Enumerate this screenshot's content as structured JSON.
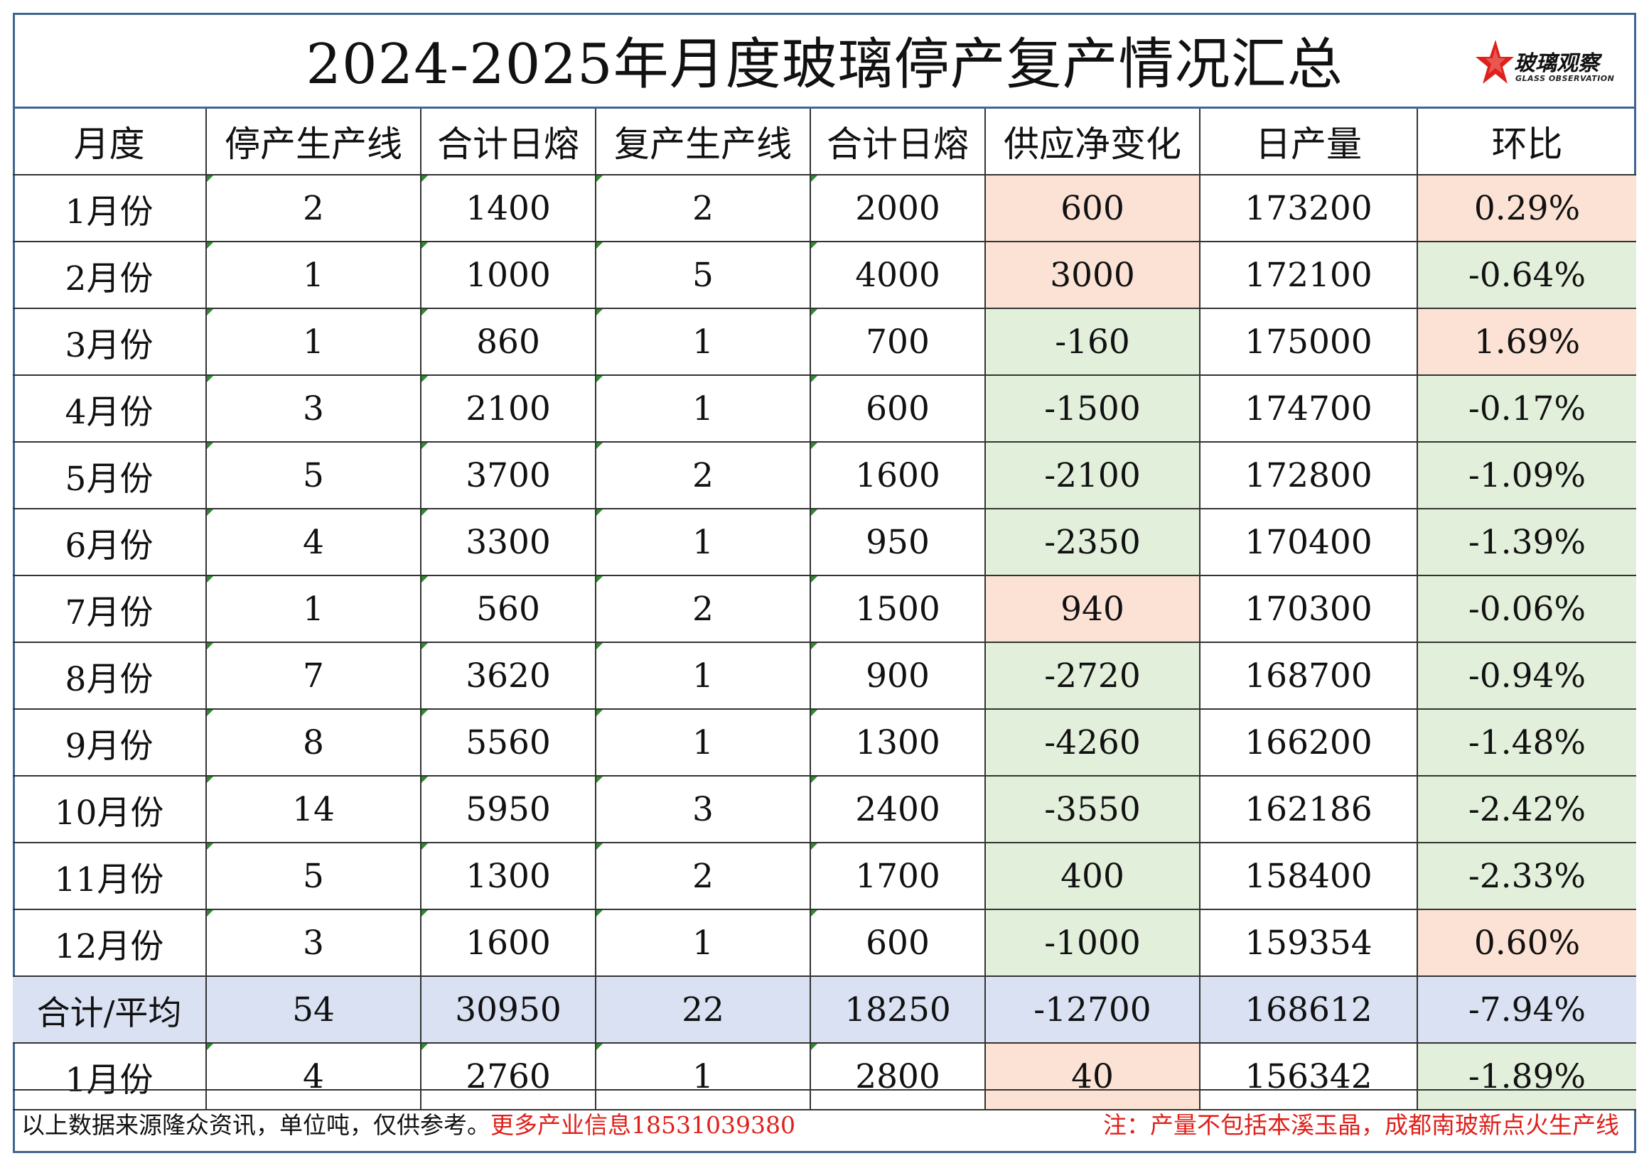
{
  "title": "2024-2025年月度玻璃停产复产情况汇总",
  "logo": {
    "name_cn": "玻璃观察",
    "name_en": "GLASS OBSERVATION",
    "icon": "red-star-icon"
  },
  "headers": [
    "月度",
    "停产生产线",
    "合计日熔",
    "复产生产线",
    "合计日熔",
    "供应净变化",
    "日产量",
    "环比"
  ],
  "rows": [
    {
      "month": "1月份",
      "stop_lines": "2",
      "stop_melt": "1400",
      "resume_lines": "2",
      "resume_melt": "2000",
      "net": "600",
      "daily": "173200",
      "mom": "0.29%",
      "net_tone": "pos",
      "mom_tone": "pos"
    },
    {
      "month": "2月份",
      "stop_lines": "1",
      "stop_melt": "1000",
      "resume_lines": "5",
      "resume_melt": "4000",
      "net": "3000",
      "daily": "172100",
      "mom": "-0.64%",
      "net_tone": "pos",
      "mom_tone": "neg"
    },
    {
      "month": "3月份",
      "stop_lines": "1",
      "stop_melt": "860",
      "resume_lines": "1",
      "resume_melt": "700",
      "net": "-160",
      "daily": "175000",
      "mom": "1.69%",
      "net_tone": "neg",
      "mom_tone": "pos"
    },
    {
      "month": "4月份",
      "stop_lines": "3",
      "stop_melt": "2100",
      "resume_lines": "1",
      "resume_melt": "600",
      "net": "-1500",
      "daily": "174700",
      "mom": "-0.17%",
      "net_tone": "neg",
      "mom_tone": "neg"
    },
    {
      "month": "5月份",
      "stop_lines": "5",
      "stop_melt": "3700",
      "resume_lines": "2",
      "resume_melt": "1600",
      "net": "-2100",
      "daily": "172800",
      "mom": "-1.09%",
      "net_tone": "neg",
      "mom_tone": "neg"
    },
    {
      "month": "6月份",
      "stop_lines": "4",
      "stop_melt": "3300",
      "resume_lines": "1",
      "resume_melt": "950",
      "net": "-2350",
      "daily": "170400",
      "mom": "-1.39%",
      "net_tone": "neg",
      "mom_tone": "neg"
    },
    {
      "month": "7月份",
      "stop_lines": "1",
      "stop_melt": "560",
      "resume_lines": "2",
      "resume_melt": "1500",
      "net": "940",
      "daily": "170300",
      "mom": "-0.06%",
      "net_tone": "pos",
      "mom_tone": "neg"
    },
    {
      "month": "8月份",
      "stop_lines": "7",
      "stop_melt": "3620",
      "resume_lines": "1",
      "resume_melt": "900",
      "net": "-2720",
      "daily": "168700",
      "mom": "-0.94%",
      "net_tone": "neg",
      "mom_tone": "neg"
    },
    {
      "month": "9月份",
      "stop_lines": "8",
      "stop_melt": "5560",
      "resume_lines": "1",
      "resume_melt": "1300",
      "net": "-4260",
      "daily": "166200",
      "mom": "-1.48%",
      "net_tone": "neg",
      "mom_tone": "neg"
    },
    {
      "month": "10月份",
      "stop_lines": "14",
      "stop_melt": "5950",
      "resume_lines": "3",
      "resume_melt": "2400",
      "net": "-3550",
      "daily": "162186",
      "mom": "-2.42%",
      "net_tone": "neg",
      "mom_tone": "neg"
    },
    {
      "month": "11月份",
      "stop_lines": "5",
      "stop_melt": "1300",
      "resume_lines": "2",
      "resume_melt": "1700",
      "net": "400",
      "daily": "158400",
      "mom": "-2.33%",
      "net_tone": "neg",
      "mom_tone": "neg"
    },
    {
      "month": "12月份",
      "stop_lines": "3",
      "stop_melt": "1600",
      "resume_lines": "1",
      "resume_melt": "600",
      "net": "-1000",
      "daily": "159354",
      "mom": "0.60%",
      "net_tone": "neg",
      "mom_tone": "pos"
    }
  ],
  "total": {
    "month": "合计/平均",
    "stop_lines": "54",
    "stop_melt": "30950",
    "resume_lines": "22",
    "resume_melt": "18250",
    "net": "-12700",
    "daily": "168612",
    "mom": "-7.94%"
  },
  "extra_row": {
    "month": "1月份",
    "stop_lines": "4",
    "stop_melt": "2760",
    "resume_lines": "1",
    "resume_melt": "2800",
    "net": "40",
    "daily": "156342",
    "mom": "-1.89%",
    "net_tone": "pos",
    "mom_tone": "neg"
  },
  "footer": {
    "source_note": "以上数据来源隆众资讯，单位吨，仅供参考。",
    "contact": "更多产业信息18531039380",
    "right_note": "注：产量不包括本溪玉晶，成都南玻新点火生产线"
  },
  "colors": {
    "positive_fill": "#fbe2d5",
    "negative_fill": "#e2efda",
    "total_fill": "#d9e1f2",
    "border_blue": "#3f6590",
    "note_red": "#e0201a"
  }
}
